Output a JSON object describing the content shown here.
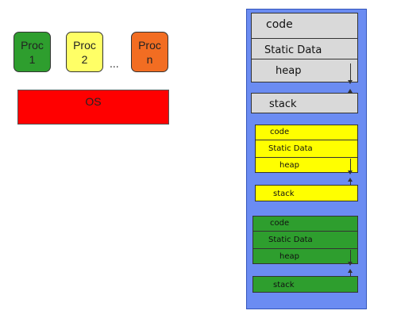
{
  "processes": [
    {
      "name": "Proc",
      "number": "1",
      "color": "#2e9e2e"
    },
    {
      "name": "Proc",
      "number": "2",
      "color": "#ffff66"
    },
    {
      "name": "Proc",
      "number": "n",
      "color": "#f26d22"
    }
  ],
  "ellipsis": "...",
  "os": {
    "label": "OS",
    "color": "#ff0000"
  },
  "address_space": {
    "background": "#6b8cf2",
    "os_block": {
      "color": "#d9d9d9",
      "code": "code",
      "static_data": "Static Data",
      "heap": "heap",
      "stack": "stack"
    },
    "proc2_block": {
      "color": "#ffff00",
      "code": "code",
      "static_data": "Static Data",
      "heap": "heap",
      "stack": "stack"
    },
    "proc1_block": {
      "color": "#2e9e2e",
      "code": "code",
      "static_data": "Static Data",
      "heap": "heap",
      "stack": "stack"
    }
  }
}
